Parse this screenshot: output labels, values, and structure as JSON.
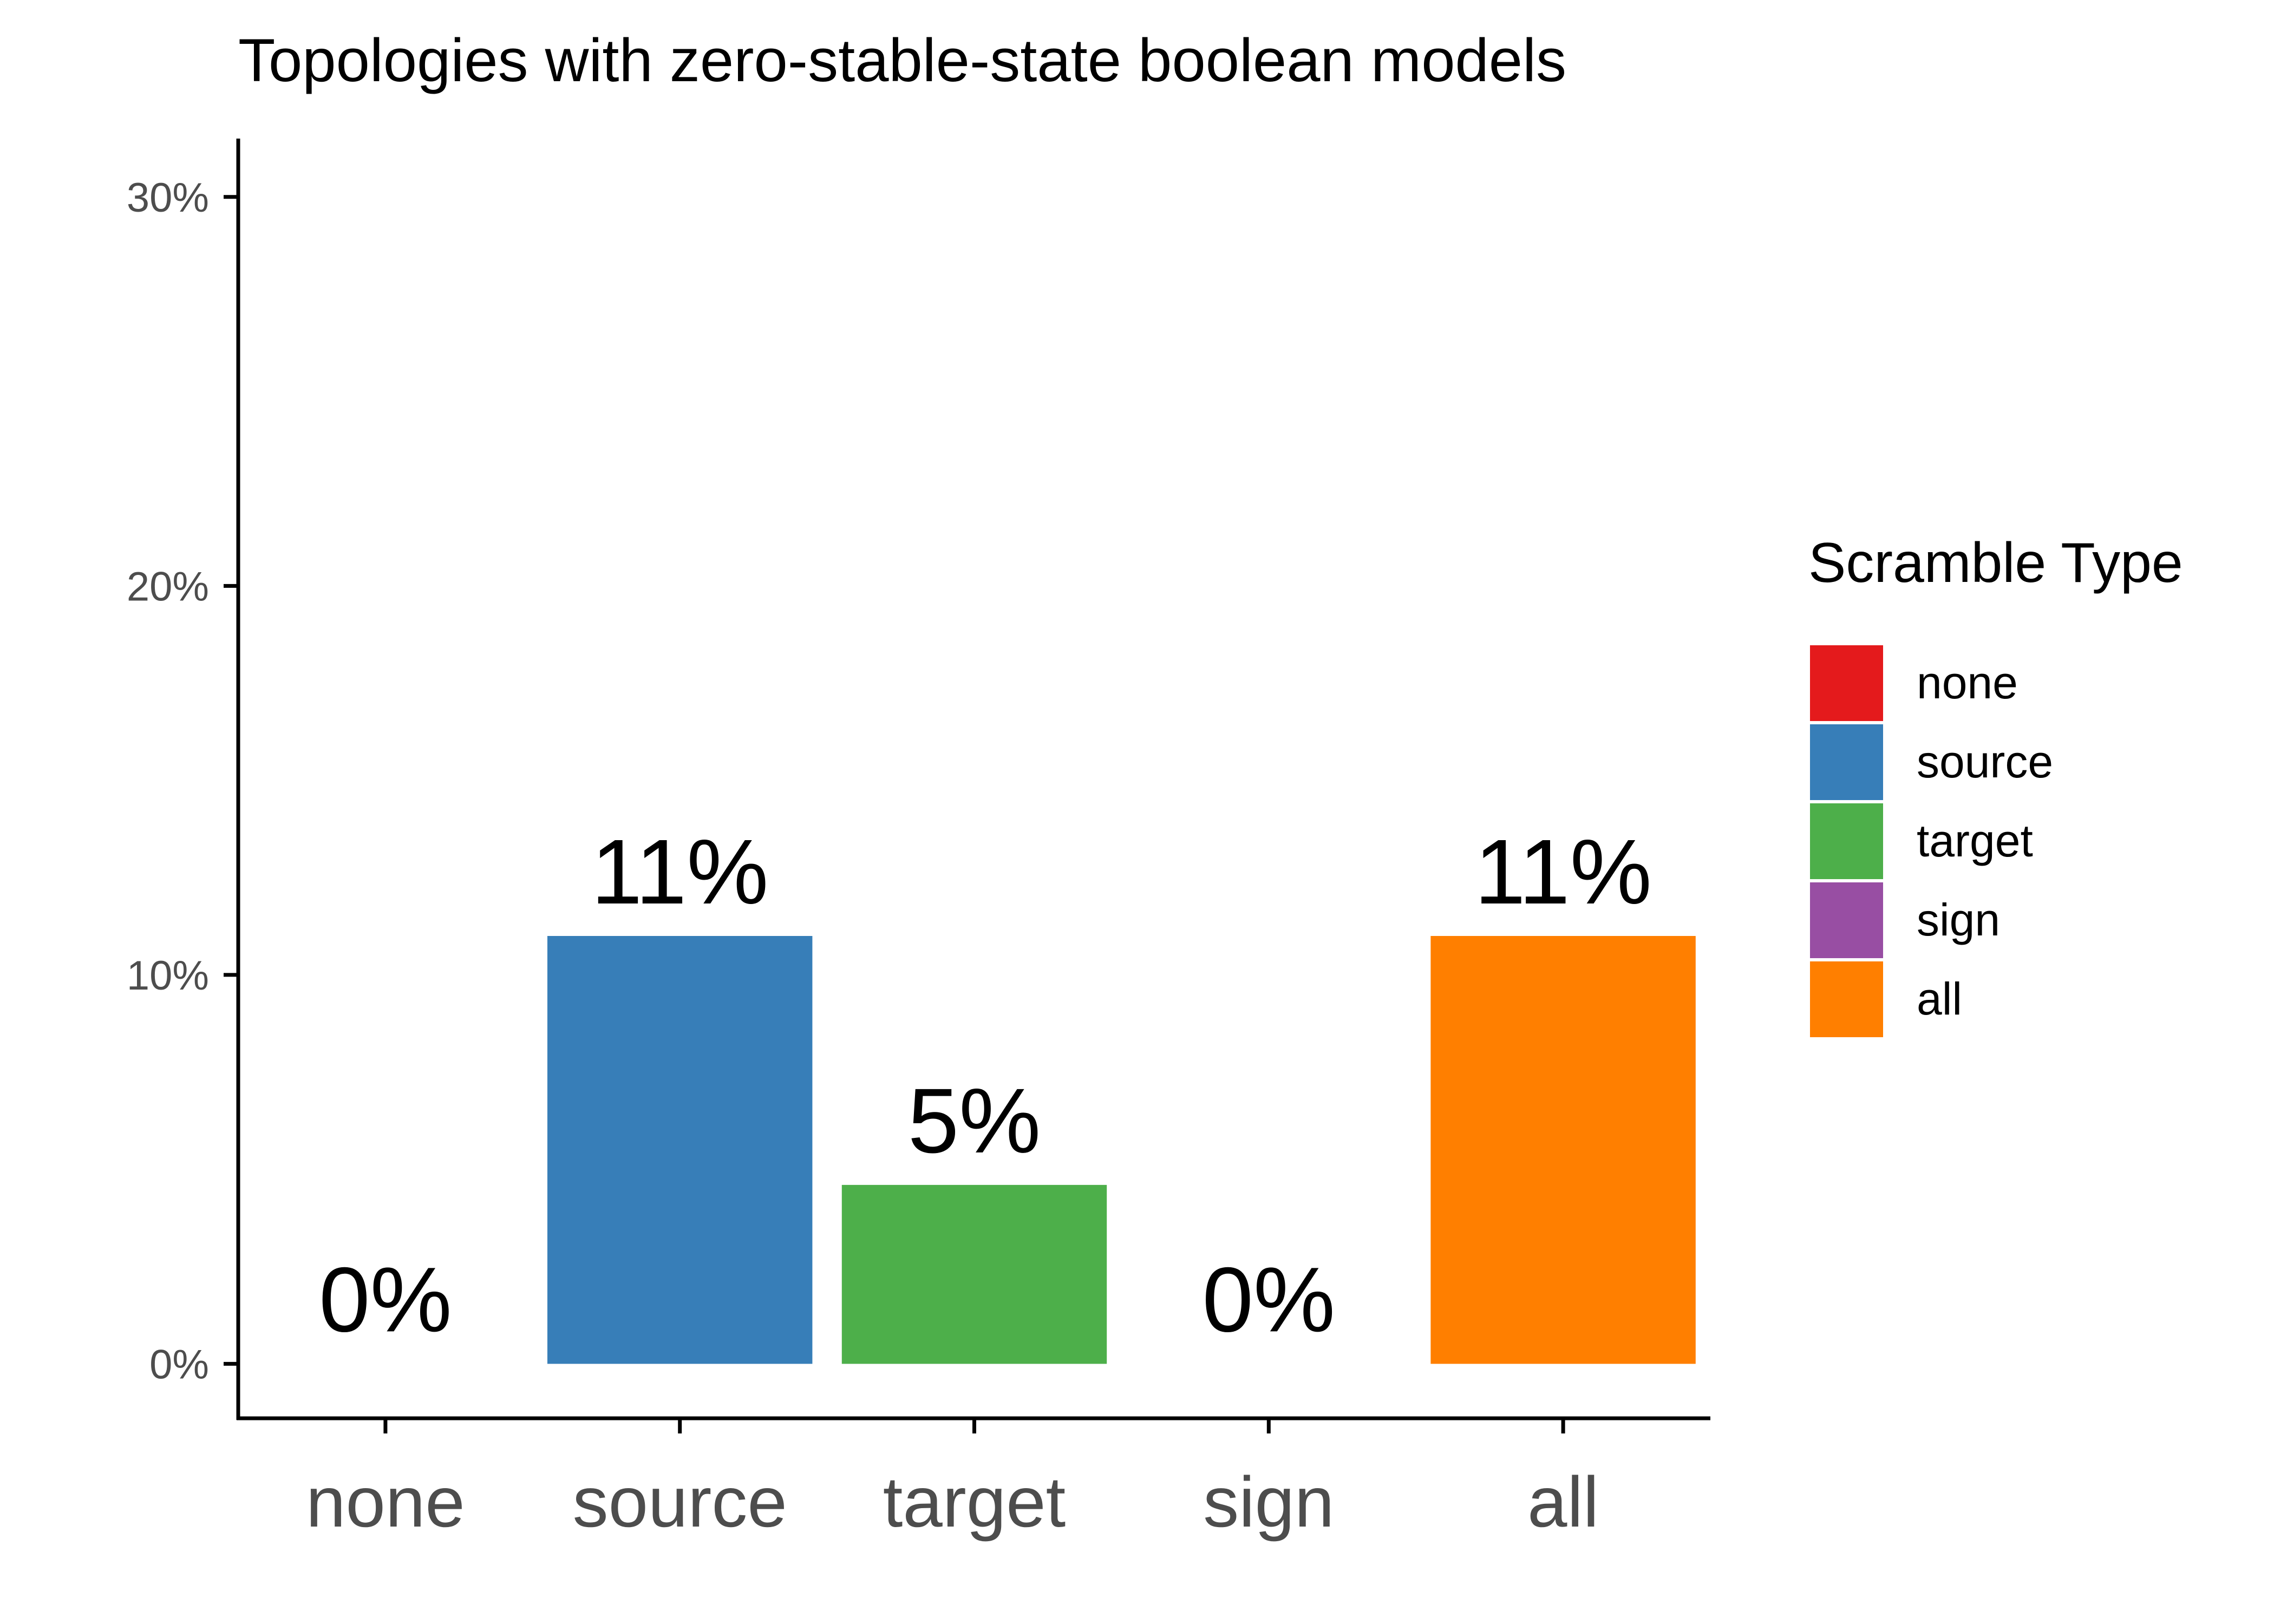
{
  "chart_data": {
    "type": "bar",
    "title": "Topologies with zero-stable-state boolean models",
    "categories": [
      "none",
      "source",
      "target",
      "sign",
      "all"
    ],
    "values": [
      0,
      11,
      4.6,
      0,
      11
    ],
    "value_labels": [
      "0%",
      "11%",
      "5%",
      "0%",
      "11%"
    ],
    "colors": [
      "#e41a1c",
      "#377eb8",
      "#4daf4a",
      "#984ea3",
      "#ff7f00"
    ],
    "ylim": [
      -1.4,
      31.5
    ],
    "yticks": [
      {
        "value": 0,
        "label": "0%"
      },
      {
        "value": 10,
        "label": "10%"
      },
      {
        "value": 20,
        "label": "20%"
      },
      {
        "value": 30,
        "label": "30%"
      }
    ],
    "grid": false,
    "legend": {
      "title": "Scramble Type",
      "position": "right"
    }
  }
}
